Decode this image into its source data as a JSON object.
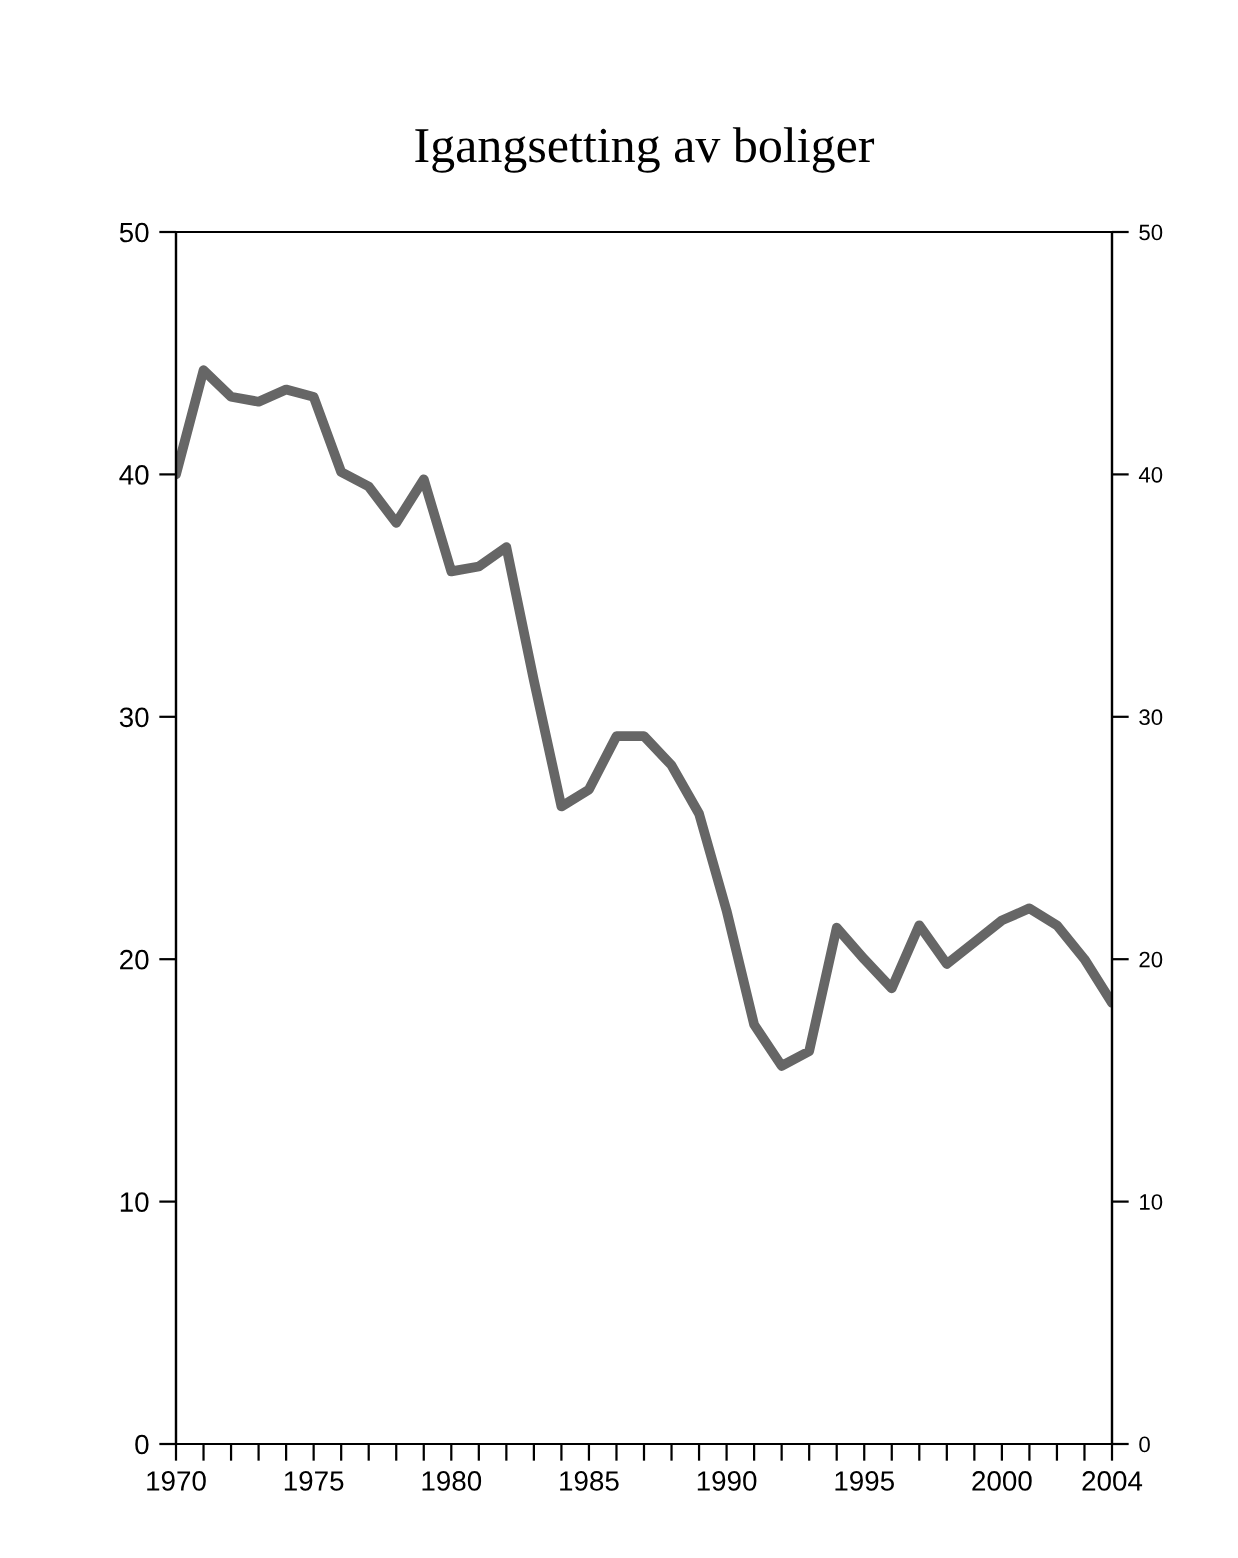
{
  "chart_data": {
    "type": "line",
    "title": "Igangsetting av boliger",
    "x": [
      1970,
      1971,
      1972,
      1973,
      1974,
      1975,
      1976,
      1977,
      1978,
      1979,
      1980,
      1981,
      1982,
      1983,
      1984,
      1985,
      1986,
      1987,
      1988,
      1989,
      1990,
      1991,
      1992,
      1993,
      1994,
      1995,
      1996,
      1997,
      1998,
      1999,
      2000,
      2001,
      2002,
      2003,
      2004
    ],
    "series": [
      {
        "color": "#666666",
        "values": [
          40,
          44.3,
          43.2,
          43,
          43.5,
          43.2,
          40.1,
          39.5,
          38,
          39.8,
          36,
          36.2,
          37,
          31.5,
          26.3,
          27,
          29.2,
          29.2,
          28,
          26,
          22,
          17.3,
          15.6,
          16.2,
          21.3,
          20,
          18.8,
          21.4,
          19.8,
          20.7,
          21.6,
          22.1,
          21.4,
          20,
          18.2
        ]
      }
    ],
    "xlim": [
      1970,
      2004
    ],
    "xticks": [
      1970,
      {
        "value": 1971,
        "label": null
      },
      {
        "value": 1972,
        "label": null
      },
      {
        "value": 1973,
        "label": null
      },
      {
        "value": 1974,
        "label": null
      },
      1975,
      {
        "value": 1976,
        "label": null
      },
      {
        "value": 1977,
        "label": null
      },
      {
        "value": 1978,
        "label": null
      },
      {
        "value": 1979,
        "label": null
      },
      1980,
      {
        "value": 1981,
        "label": null
      },
      {
        "value": 1982,
        "label": null
      },
      {
        "value": 1983,
        "label": null
      },
      {
        "value": 1984,
        "label": null
      },
      1985,
      {
        "value": 1986,
        "label": null
      },
      {
        "value": 1987,
        "label": null
      },
      {
        "value": 1988,
        "label": null
      },
      {
        "value": 1989,
        "label": null
      },
      1990,
      {
        "value": 1991,
        "label": null
      },
      {
        "value": 1992,
        "label": null
      },
      {
        "value": 1993,
        "label": null
      },
      {
        "value": 1994,
        "label": null
      },
      1995,
      {
        "value": 1996,
        "label": null
      },
      {
        "value": 1997,
        "label": null
      },
      {
        "value": 1998,
        "label": null
      },
      {
        "value": 1999,
        "label": null
      },
      2000,
      {
        "value": 2001,
        "label": null
      },
      {
        "value": 2002,
        "label": null
      },
      {
        "value": 2003,
        "label": null
      },
      2004
    ],
    "ylim": [
      0,
      50
    ],
    "yticks": [
      0,
      10,
      20,
      30,
      40,
      50
    ],
    "y2lim": [
      0,
      50
    ],
    "y2ticks": [
      0,
      10,
      20,
      30,
      40,
      50
    ],
    "grid": false,
    "legend": false,
    "marker": "none",
    "line_style": "solid"
  }
}
